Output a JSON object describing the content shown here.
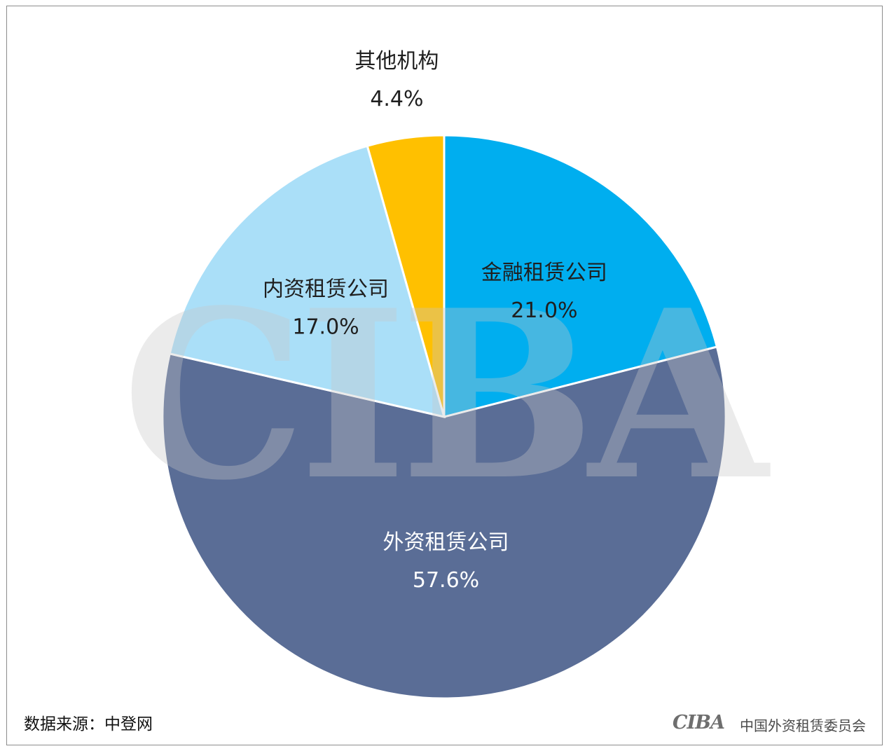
{
  "chart_data": {
    "type": "pie",
    "title": "",
    "start_angle_deg": 0,
    "direction": "clockwise",
    "slices": [
      {
        "label": "金融租赁公司",
        "value": 21.0,
        "display": "21.0%",
        "color": "#00aeef"
      },
      {
        "label": "外资租赁公司",
        "value": 57.6,
        "display": "57.6%",
        "color": "#5a6d96"
      },
      {
        "label": "内资租赁公司",
        "value": 17.0,
        "display": "17.0%",
        "color": "#aadff8"
      },
      {
        "label": "其他机构",
        "value": 4.4,
        "display": "4.4%",
        "color": "#ffc000"
      }
    ]
  },
  "watermark": {
    "text": "CIBA",
    "color": "#c8c8c8"
  },
  "footer": {
    "source": "数据来源：中登网",
    "logo": "CIBA",
    "org": "中国外资租赁委员会"
  }
}
